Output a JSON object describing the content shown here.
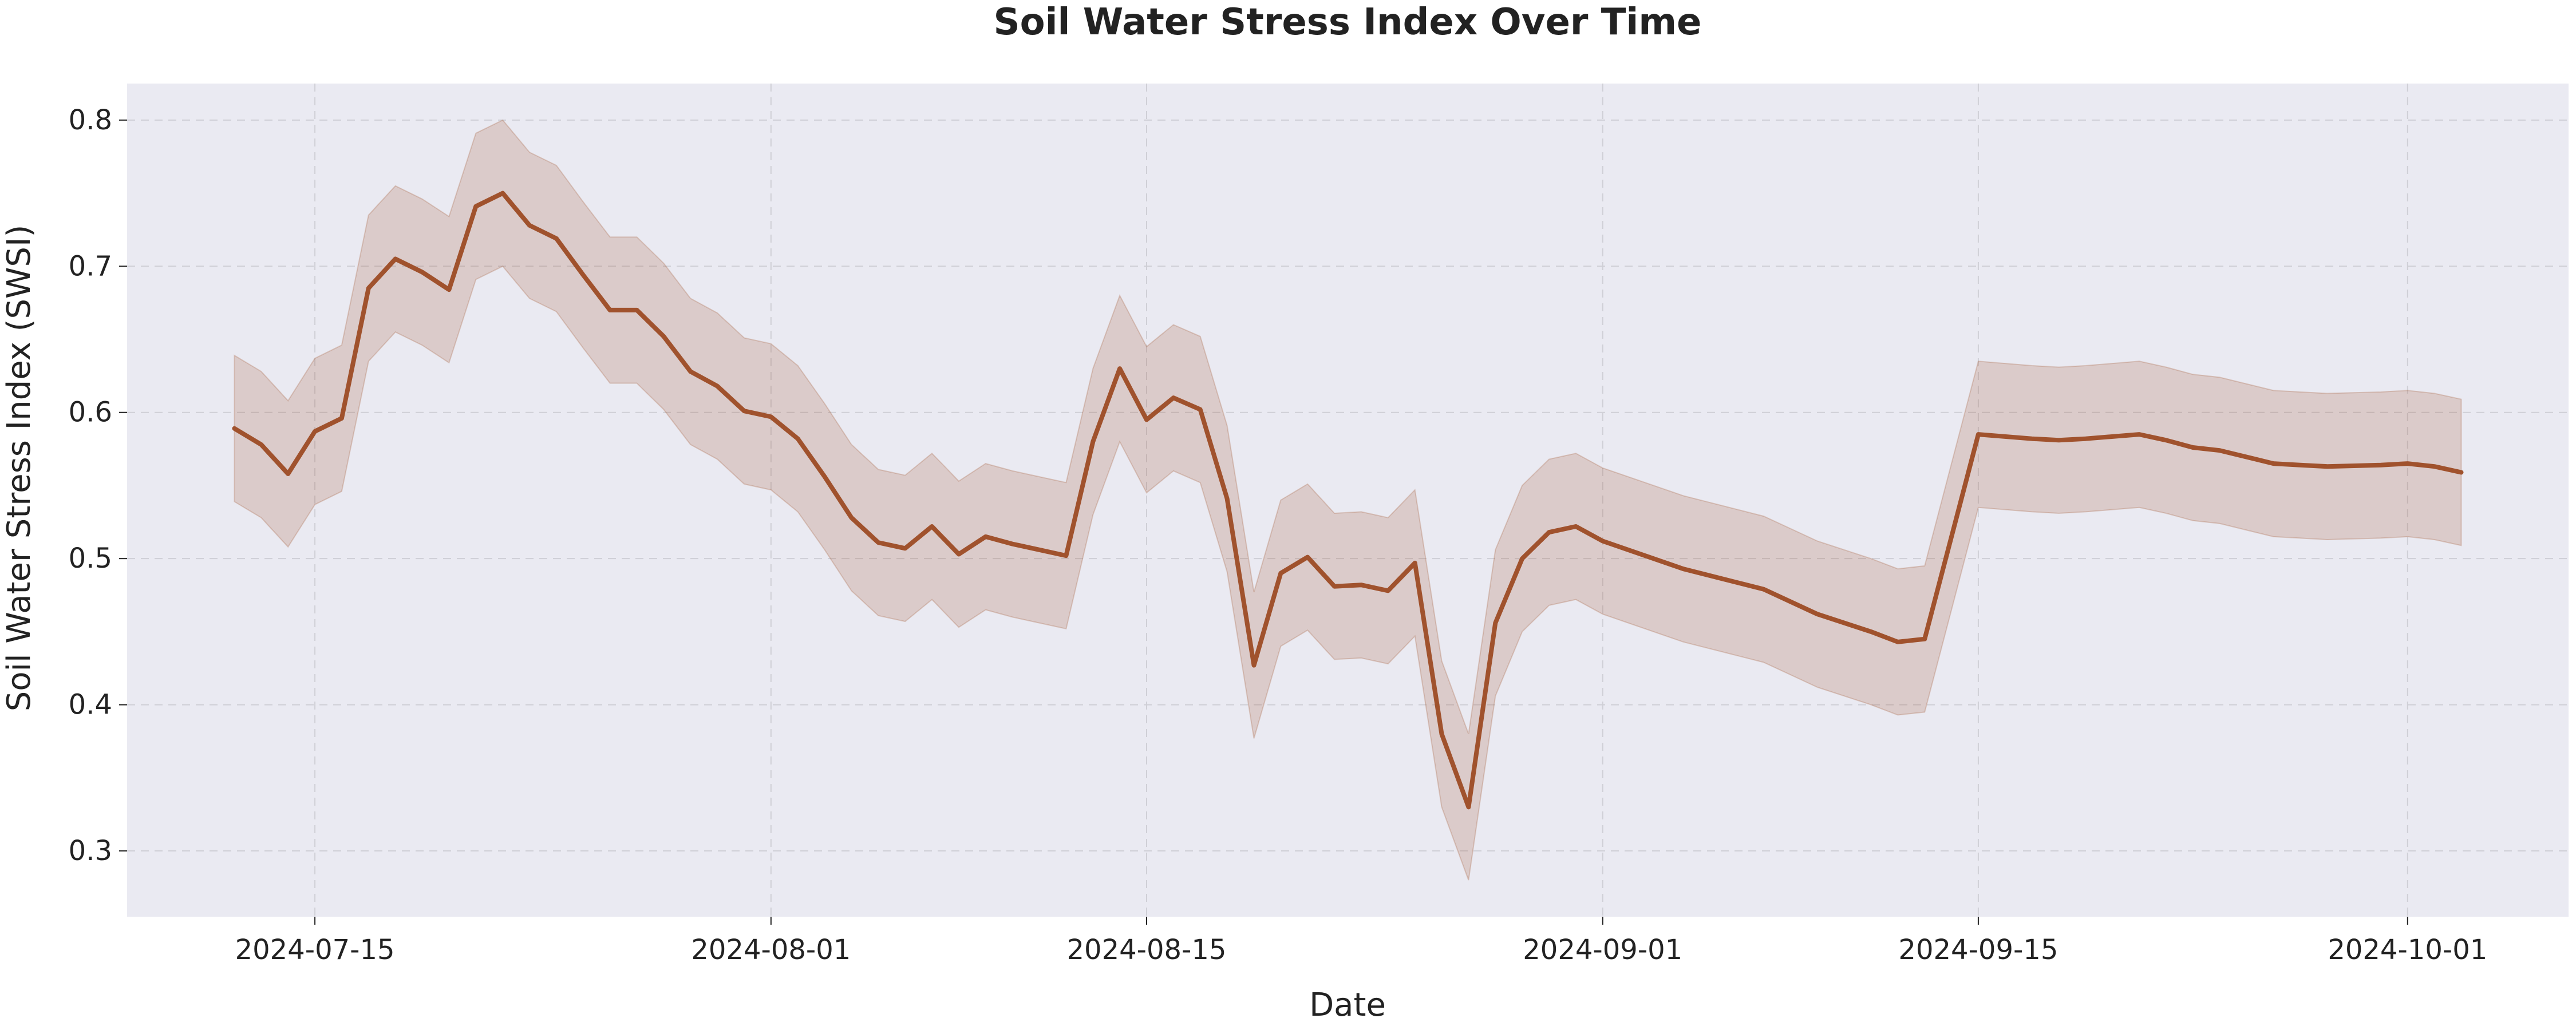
{
  "chart_data": {
    "type": "line",
    "title": "Soil Water Stress Index Over Time",
    "xlabel": "Date",
    "ylabel": "Soil Water Stress Index (SWSI)",
    "x_ticks": [
      "2024-07-15",
      "2024-08-01",
      "2024-08-15",
      "2024-09-01",
      "2024-09-15",
      "2024-10-01"
    ],
    "y_ticks": [
      "0.3",
      "0.4",
      "0.5",
      "0.6",
      "0.7",
      "0.8"
    ],
    "xlim": [
      "2024-07-08",
      "2024-10-07"
    ],
    "ylim": [
      0.255,
      0.825
    ],
    "grid": true,
    "band_halfwidth": 0.05,
    "series": [
      {
        "x": [
          "2024-07-12",
          "2024-07-13",
          "2024-07-14",
          "2024-07-15",
          "2024-07-16",
          "2024-07-17",
          "2024-07-18",
          "2024-07-19",
          "2024-07-20",
          "2024-07-21",
          "2024-07-22",
          "2024-07-23",
          "2024-07-24",
          "2024-07-25",
          "2024-07-26",
          "2024-07-27",
          "2024-07-28",
          "2024-07-29",
          "2024-07-30",
          "2024-07-31",
          "2024-08-01",
          "2024-08-02",
          "2024-08-03",
          "2024-08-04",
          "2024-08-05",
          "2024-08-06",
          "2024-08-07",
          "2024-08-08",
          "2024-08-09",
          "2024-08-10",
          "2024-08-11",
          "2024-08-12",
          "2024-08-13",
          "2024-08-14",
          "2024-08-15",
          "2024-08-16",
          "2024-08-17",
          "2024-08-18",
          "2024-08-19",
          "2024-08-20",
          "2024-08-21",
          "2024-08-22",
          "2024-08-23",
          "2024-08-24",
          "2024-08-25",
          "2024-08-26",
          "2024-08-27",
          "2024-08-28",
          "2024-08-29",
          "2024-08-30",
          "2024-08-31",
          "2024-09-01",
          "2024-09-04",
          "2024-09-07",
          "2024-09-09",
          "2024-09-11",
          "2024-09-12",
          "2024-09-13",
          "2024-09-15",
          "2024-09-17",
          "2024-09-18",
          "2024-09-19",
          "2024-09-21",
          "2024-09-22",
          "2024-09-23",
          "2024-09-24",
          "2024-09-26",
          "2024-09-27",
          "2024-09-28",
          "2024-09-30",
          "2024-10-01",
          "2024-10-02",
          "2024-10-03"
        ],
        "values": [
          0.589,
          0.578,
          0.558,
          0.587,
          0.596,
          0.685,
          0.705,
          0.696,
          0.684,
          0.741,
          0.75,
          0.728,
          0.719,
          0.694,
          0.67,
          0.67,
          0.652,
          0.628,
          0.618,
          0.601,
          0.597,
          0.582,
          0.556,
          0.528,
          0.511,
          0.507,
          0.522,
          0.503,
          0.515,
          0.51,
          0.506,
          0.502,
          0.58,
          0.63,
          0.595,
          0.61,
          0.602,
          0.541,
          0.427,
          0.49,
          0.501,
          0.481,
          0.482,
          0.478,
          0.497,
          0.38,
          0.33,
          0.456,
          0.5,
          0.518,
          0.522,
          0.512,
          0.493,
          0.479,
          0.462,
          0.45,
          0.443,
          0.445,
          0.585,
          0.582,
          0.581,
          0.582,
          0.585,
          0.581,
          0.576,
          0.574,
          0.565,
          0.564,
          0.563,
          0.564,
          0.565,
          0.563,
          0.559
        ]
      }
    ],
    "colors": {
      "line": "#a0522d",
      "band": "#a0522d",
      "plot_background": "#eaeaf2",
      "grid": "#cfcfd6",
      "text": "#222222"
    }
  }
}
